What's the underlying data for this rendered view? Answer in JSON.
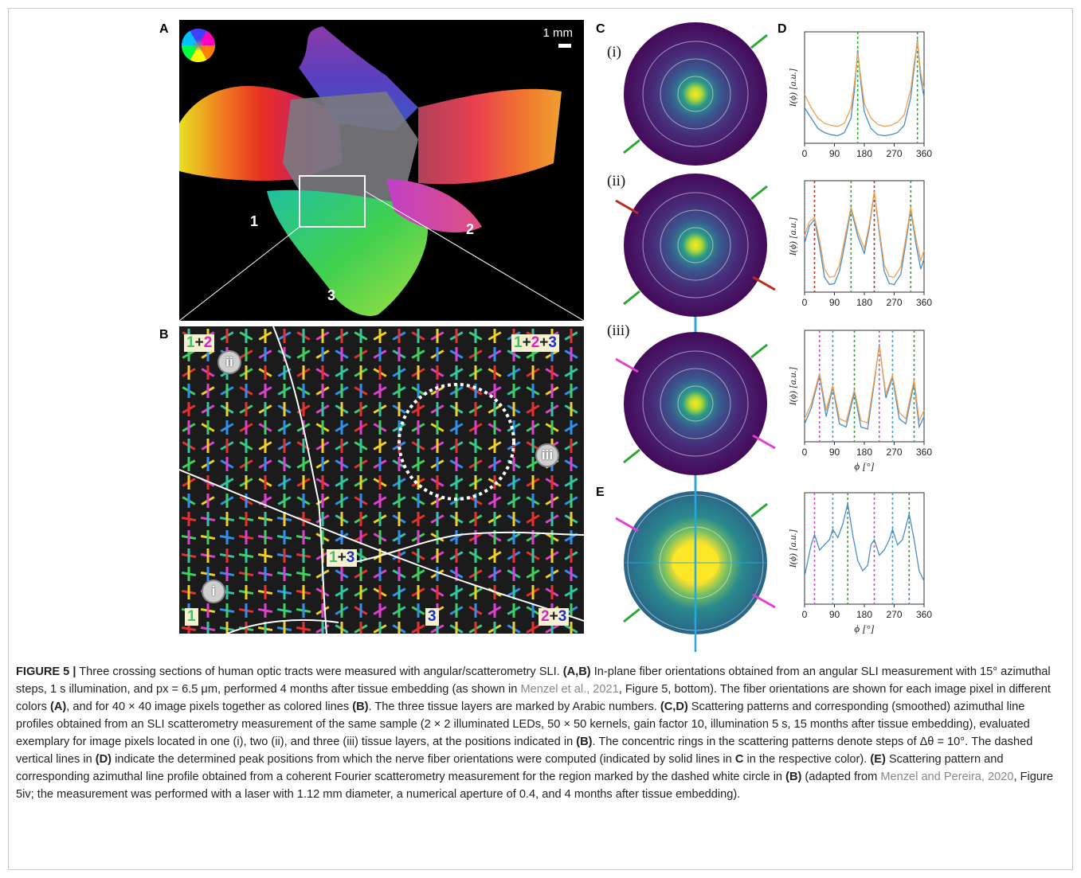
{
  "figure": {
    "panel_letters": {
      "A": "A",
      "B": "B",
      "C": "C",
      "D": "D",
      "E": "E"
    },
    "panel_a": {
      "scalebar_label": "1 mm",
      "layer_labels": [
        "1",
        "2",
        "3"
      ]
    },
    "panel_b": {
      "tags": {
        "t12": [
          "1",
          "+",
          "2"
        ],
        "t123": [
          "1",
          "+",
          "2",
          "+",
          "3"
        ],
        "t13": [
          "1",
          "+",
          "3"
        ],
        "t1": [
          "1"
        ],
        "t3": [
          "3"
        ],
        "t23": [
          "2",
          "+",
          "3"
        ]
      },
      "circle_labels": {
        "ii": "ii",
        "iii": "iii",
        "i": "i"
      }
    },
    "panel_c": {
      "row_labels": [
        "(i)",
        "(ii)",
        "(iii)"
      ]
    },
    "colors": {
      "green": "#2aa830",
      "red": "#c0281e",
      "magenta": "#e83cd8",
      "cyan": "#28a8e0",
      "blue_line": "#4a8ec8",
      "orange_line": "#f0a050",
      "viridis_dark": "#440a58",
      "viridis_mid": "#2a7f8e",
      "viridis_light": "#3cbb75",
      "viridis_yellow": "#fde725"
    }
  },
  "chart_data": [
    {
      "id": "D-i",
      "type": "line",
      "ylabel": "I(ϕ) [a.u.]",
      "xlabel": "",
      "xlim": [
        0,
        360
      ],
      "xticks": [
        "0",
        "90",
        "180",
        "270",
        "360"
      ],
      "peaks": [
        {
          "x": 160,
          "color": "green"
        },
        {
          "x": 340,
          "color": "green"
        }
      ],
      "series": [
        {
          "values_x": [
            0,
            20,
            40,
            60,
            80,
            100,
            120,
            140,
            150,
            160,
            170,
            180,
            200,
            220,
            240,
            260,
            280,
            300,
            320,
            330,
            340,
            350,
            360
          ],
          "values_y": [
            0.32,
            0.22,
            0.12,
            0.08,
            0.06,
            0.05,
            0.08,
            0.22,
            0.48,
            0.88,
            0.55,
            0.28,
            0.12,
            0.06,
            0.05,
            0.06,
            0.08,
            0.15,
            0.42,
            0.7,
            0.98,
            0.6,
            0.42
          ]
        },
        {
          "values_x": [
            0,
            20,
            40,
            60,
            80,
            100,
            120,
            140,
            150,
            160,
            170,
            180,
            200,
            220,
            240,
            260,
            280,
            300,
            320,
            330,
            340,
            350,
            360
          ],
          "values_y": [
            0.45,
            0.32,
            0.22,
            0.17,
            0.15,
            0.14,
            0.17,
            0.32,
            0.55,
            0.85,
            0.6,
            0.36,
            0.22,
            0.16,
            0.14,
            0.15,
            0.18,
            0.25,
            0.5,
            0.75,
            0.96,
            0.66,
            0.5
          ]
        }
      ]
    },
    {
      "id": "D-ii",
      "type": "line",
      "ylabel": "I(ϕ) [a.u.]",
      "xlabel": "",
      "xlim": [
        0,
        360
      ],
      "xticks": [
        "0",
        "90",
        "180",
        "270",
        "360"
      ],
      "peaks": [
        {
          "x": 30,
          "color": "red"
        },
        {
          "x": 140,
          "color": "green"
        },
        {
          "x": 210,
          "color": "red"
        },
        {
          "x": 320,
          "color": "green"
        }
      ],
      "series": [
        {
          "values_x": [
            0,
            15,
            30,
            45,
            60,
            75,
            90,
            105,
            120,
            140,
            160,
            180,
            195,
            210,
            225,
            240,
            255,
            270,
            290,
            305,
            320,
            335,
            350,
            360
          ],
          "values_y": [
            0.45,
            0.62,
            0.68,
            0.42,
            0.12,
            0.05,
            0.06,
            0.18,
            0.42,
            0.78,
            0.52,
            0.35,
            0.6,
            0.95,
            0.55,
            0.18,
            0.06,
            0.05,
            0.15,
            0.45,
            0.78,
            0.45,
            0.2,
            0.3
          ]
        },
        {
          "values_x": [
            0,
            15,
            30,
            45,
            60,
            75,
            90,
            105,
            120,
            140,
            160,
            180,
            195,
            210,
            225,
            240,
            255,
            270,
            290,
            305,
            320,
            335,
            350,
            360
          ],
          "values_y": [
            0.52,
            0.66,
            0.7,
            0.48,
            0.2,
            0.12,
            0.13,
            0.24,
            0.48,
            0.8,
            0.56,
            0.4,
            0.63,
            0.95,
            0.58,
            0.24,
            0.13,
            0.12,
            0.22,
            0.5,
            0.8,
            0.5,
            0.28,
            0.38
          ]
        }
      ]
    },
    {
      "id": "D-iii",
      "type": "line",
      "ylabel": "I(ϕ) [a.u.]",
      "xlabel": "ϕ [°]",
      "xlim": [
        0,
        360
      ],
      "xticks": [
        "0",
        "90",
        "180",
        "270",
        "360"
      ],
      "peaks": [
        {
          "x": 45,
          "color": "magenta"
        },
        {
          "x": 85,
          "color": "cyan"
        },
        {
          "x": 150,
          "color": "green"
        },
        {
          "x": 225,
          "color": "magenta"
        },
        {
          "x": 265,
          "color": "cyan"
        },
        {
          "x": 330,
          "color": "green"
        }
      ],
      "series": [
        {
          "values_x": [
            0,
            20,
            45,
            65,
            85,
            105,
            125,
            150,
            170,
            190,
            210,
            225,
            245,
            265,
            285,
            305,
            330,
            345,
            360
          ],
          "values_y": [
            0.15,
            0.3,
            0.62,
            0.22,
            0.5,
            0.15,
            0.12,
            0.45,
            0.12,
            0.1,
            0.55,
            0.92,
            0.4,
            0.6,
            0.2,
            0.15,
            0.55,
            0.12,
            0.22
          ]
        },
        {
          "values_x": [
            0,
            20,
            45,
            65,
            85,
            105,
            125,
            150,
            170,
            190,
            210,
            225,
            245,
            265,
            285,
            305,
            330,
            345,
            360
          ],
          "values_y": [
            0.2,
            0.34,
            0.64,
            0.28,
            0.52,
            0.2,
            0.17,
            0.48,
            0.18,
            0.16,
            0.58,
            0.9,
            0.44,
            0.62,
            0.26,
            0.2,
            0.58,
            0.18,
            0.28
          ]
        }
      ]
    },
    {
      "id": "E-profile",
      "type": "line",
      "ylabel": "I(ϕ) [a.u.]",
      "xlabel": "ϕ [°]",
      "xlim": [
        0,
        360
      ],
      "xticks": [
        "0",
        "90",
        "180",
        "270",
        "360"
      ],
      "peaks": [
        {
          "x": 30,
          "color": "magenta"
        },
        {
          "x": 85,
          "color": "cyan"
        },
        {
          "x": 130,
          "color": "green"
        },
        {
          "x": 210,
          "color": "magenta"
        },
        {
          "x": 265,
          "color": "cyan"
        },
        {
          "x": 315,
          "color": "green"
        }
      ],
      "series": [
        {
          "values_x": [
            0,
            10,
            20,
            30,
            45,
            60,
            75,
            85,
            100,
            115,
            130,
            145,
            160,
            175,
            190,
            200,
            210,
            225,
            240,
            255,
            265,
            280,
            295,
            315,
            330,
            345,
            360
          ],
          "values_y": [
            0.25,
            0.4,
            0.55,
            0.65,
            0.5,
            0.55,
            0.6,
            0.7,
            0.62,
            0.75,
            0.95,
            0.65,
            0.4,
            0.3,
            0.35,
            0.55,
            0.6,
            0.45,
            0.5,
            0.6,
            0.7,
            0.55,
            0.6,
            0.85,
            0.6,
            0.3,
            0.2
          ]
        }
      ]
    }
  ],
  "caption": {
    "label": "FIGURE 5 |",
    "s1": " Three crossing sections of human optic tracts were measured with angular/scatterometry SLI. ",
    "s2b": "(A,B)",
    "s3": " In-plane fiber orientations obtained from an angular SLI measurement with 15° azimuthal steps, 1 s illumination, and px = 6.5 μm, performed 4 months after tissue embedding (as shown in ",
    "ref1": "Menzel et al., 2021",
    "s4": ", Figure 5, bottom). The fiber orientations are shown for each image pixel in different colors ",
    "s5b": "(A)",
    "s6": ", and for 40 × 40 image pixels together as colored lines ",
    "s7b": "(B)",
    "s8": ". The three tissue layers are marked by Arabic numbers. ",
    "s9b": "(C,D)",
    "s10": " Scattering patterns and corresponding (smoothed) azimuthal line profiles obtained from an SLI scatterometry measurement of the same sample (2 × 2 illuminated LEDs, 50 × 50 kernels, gain factor 10, illumination 5 s, 15 months after tissue embedding), evaluated exemplary for image pixels located in one (i), two (ii), and three (iii) tissue layers, at the positions indicated in ",
    "s11b": "(B)",
    "s12": ". The concentric rings in the scattering patterns denote steps of Δθ = 10°. The dashed vertical lines in ",
    "s13b": "(D)",
    "s14": " indicate the determined peak positions from which the nerve fiber orientations were computed (indicated by solid lines in ",
    "s15b": "C",
    "s16": " in the respective color). ",
    "s17b": "(E)",
    "s18": " Scattering pattern and corresponding azimuthal line profile obtained from a coherent Fourier scatterometry measurement for the region marked by the dashed white circle in ",
    "s19b": "(B)",
    "s20": " (adapted from ",
    "ref2": "Menzel and Pereira, 2020",
    "s21": ", Figure 5iv; the measurement was performed with a laser with 1.12 mm diameter, a numerical aperture of 0.4, and 4 months after tissue embedding)."
  }
}
